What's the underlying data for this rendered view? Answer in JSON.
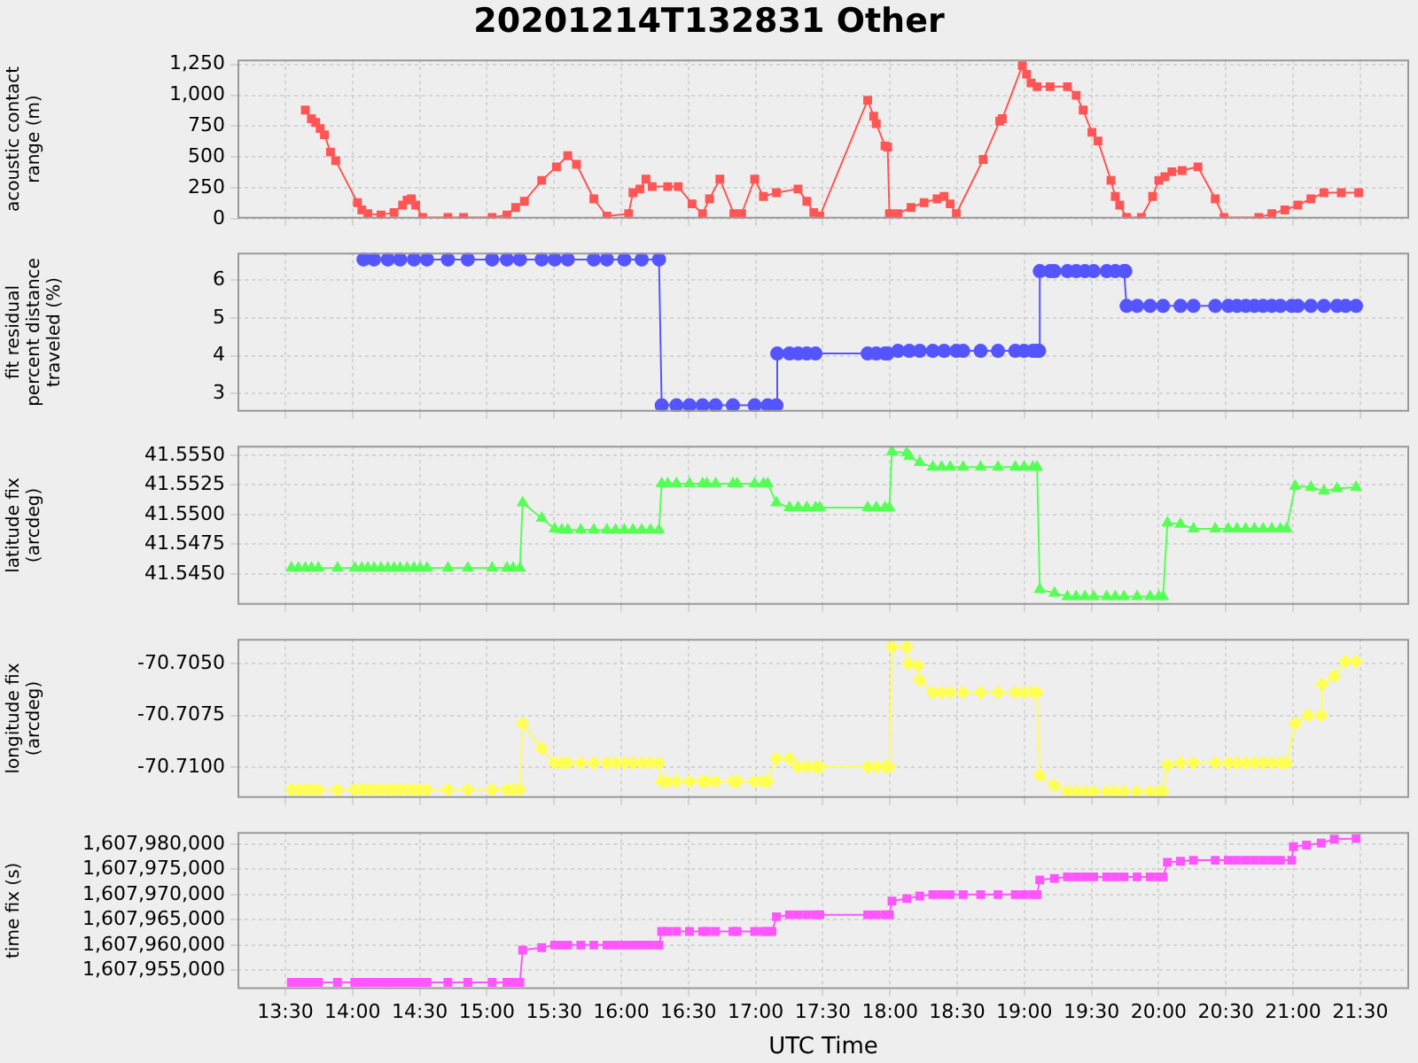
{
  "chart_data": [
    {
      "type": "line",
      "title": "20201214T132831 Other",
      "ylabel": "acoustic contact range (m)",
      "marker": "square",
      "grid": true,
      "tick_labels": "y",
      "xlim": [
        13.144,
        21.864
      ],
      "xticks": [
        {
          "value": 13.5,
          "label": null
        },
        {
          "value": 14,
          "label": null
        },
        {
          "value": 14.5,
          "label": null
        },
        {
          "value": 15,
          "label": null
        },
        {
          "value": 15.5,
          "label": null
        },
        {
          "value": 16,
          "label": null
        },
        {
          "value": 16.5,
          "label": null
        },
        {
          "value": 17,
          "label": null
        },
        {
          "value": 17.5,
          "label": null
        },
        {
          "value": 18,
          "label": null
        },
        {
          "value": 18.5,
          "label": null
        },
        {
          "value": 19,
          "label": null
        },
        {
          "value": 19.5,
          "label": null
        },
        {
          "value": 20,
          "label": null
        },
        {
          "value": 20.5,
          "label": null
        },
        {
          "value": 21,
          "label": null
        },
        {
          "value": 21.5,
          "label": null
        }
      ],
      "ylim": [
        0,
        1290
      ],
      "yticks": [
        0,
        250,
        500,
        750,
        {
          "value": 1000,
          "label": "1,000"
        },
        {
          "value": 1250,
          "label": "1,250"
        }
      ],
      "x": [
        13.649,
        13.694,
        13.726,
        13.759,
        13.791,
        13.836,
        13.875,
        14.037,
        14.069,
        14.114,
        14.212,
        14.309,
        14.373,
        14.406,
        14.438,
        14.47,
        14.522,
        14.71,
        14.826,
        15.039,
        15.149,
        15.214,
        15.279,
        15.408,
        15.518,
        15.602,
        15.667,
        15.796,
        15.893,
        16.055,
        16.087,
        16.139,
        16.184,
        16.23,
        16.346,
        16.424,
        16.527,
        16.605,
        16.657,
        16.734,
        16.838,
        16.896,
        16.993,
        17.058,
        17.155,
        17.316,
        17.381,
        17.433,
        17.478,
        17.834,
        17.879,
        17.898,
        17.963,
        17.983,
        17.996,
        18.06,
        18.157,
        18.254,
        18.351,
        18.403,
        18.448,
        18.494,
        18.694,
        18.817,
        18.836,
        18.985,
        19.017,
        19.05,
        19.095,
        19.192,
        19.321,
        19.386,
        19.438,
        19.503,
        19.548,
        19.645,
        19.677,
        19.71,
        19.761,
        19.871,
        19.955,
        20.001,
        20.046,
        20.098,
        20.175,
        20.292,
        20.421,
        20.486,
        20.745,
        20.842,
        20.939,
        21.036,
        21.133,
        21.23,
        21.359,
        21.488
      ],
      "series": [
        {
          "color": "#ff5555",
          "values": [
            880,
            810,
            780,
            730,
            680,
            540,
            470,
            130,
            70,
            40,
            30,
            50,
            110,
            150,
            160,
            110,
            10,
            10,
            10,
            10,
            30,
            90,
            140,
            310,
            420,
            510,
            440,
            160,
            20,
            40,
            210,
            240,
            320,
            260,
            260,
            260,
            120,
            40,
            160,
            320,
            40,
            40,
            320,
            180,
            210,
            240,
            140,
            50,
            20,
            960,
            830,
            770,
            590,
            580,
            40,
            40,
            90,
            130,
            160,
            180,
            120,
            40,
            480,
            790,
            810,
            1240,
            1170,
            1100,
            1070,
            1070,
            1070,
            1000,
            880,
            700,
            630,
            310,
            180,
            110,
            10,
            10,
            180,
            310,
            340,
            380,
            390,
            420,
            160,
            10,
            10,
            40,
            70,
            110,
            160,
            210,
            210,
            210
          ]
        }
      ]
    },
    {
      "type": "line",
      "ylabel": "fit residual percent distance traveled (%)",
      "marker": "circle",
      "grid": true,
      "tick_labels": "y",
      "xlim": [
        13.144,
        21.864
      ],
      "xticks": [
        {
          "value": 13.5,
          "label": null
        },
        {
          "value": 14,
          "label": null
        },
        {
          "value": 14.5,
          "label": null
        },
        {
          "value": 15,
          "label": null
        },
        {
          "value": 15.5,
          "label": null
        },
        {
          "value": 16,
          "label": null
        },
        {
          "value": 16.5,
          "label": null
        },
        {
          "value": 17,
          "label": null
        },
        {
          "value": 17.5,
          "label": null
        },
        {
          "value": 18,
          "label": null
        },
        {
          "value": 18.5,
          "label": null
        },
        {
          "value": 19,
          "label": null
        },
        {
          "value": 19.5,
          "label": null
        },
        {
          "value": 20,
          "label": null
        },
        {
          "value": 20.5,
          "label": null
        },
        {
          "value": 21,
          "label": null
        },
        {
          "value": 21.5,
          "label": null
        }
      ],
      "ylim": [
        2.52,
        6.73
      ],
      "yticks": [
        3,
        4,
        5,
        6
      ],
      "x": [
        14.082,
        14.16,
        14.263,
        14.354,
        14.457,
        14.554,
        14.71,
        14.858,
        15.039,
        15.149,
        15.246,
        15.408,
        15.505,
        15.602,
        15.796,
        15.893,
        16.023,
        16.152,
        16.281,
        16.301,
        16.411,
        16.508,
        16.605,
        16.702,
        16.831,
        16.993,
        17.09,
        17.155,
        17.161,
        17.252,
        17.316,
        17.381,
        17.446,
        17.834,
        17.898,
        17.963,
        17.983,
        18.06,
        18.144,
        18.222,
        18.319,
        18.403,
        18.494,
        18.545,
        18.675,
        18.804,
        18.933,
        18.998,
        19.063,
        19.095,
        19.11,
        19.115,
        19.192,
        19.224,
        19.321,
        19.386,
        19.451,
        19.516,
        19.613,
        19.677,
        19.742,
        19.752,
        19.761,
        19.839,
        19.936,
        20.033,
        20.162,
        20.259,
        20.421,
        20.518,
        20.583,
        20.648,
        20.712,
        20.777,
        20.842,
        20.906,
        20.99,
        21.036,
        21.133,
        21.23,
        21.327,
        21.391,
        21.469
      ],
      "series": [
        {
          "color": "#5555ff",
          "values": [
            6.55,
            6.55,
            6.55,
            6.55,
            6.55,
            6.55,
            6.55,
            6.55,
            6.55,
            6.55,
            6.55,
            6.55,
            6.55,
            6.55,
            6.55,
            6.55,
            6.55,
            6.55,
            6.55,
            2.69,
            2.69,
            2.69,
            2.69,
            2.69,
            2.69,
            2.69,
            2.69,
            2.69,
            4.06,
            4.06,
            4.06,
            4.06,
            4.06,
            4.06,
            4.06,
            4.06,
            4.06,
            4.13,
            4.13,
            4.13,
            4.13,
            4.13,
            4.13,
            4.13,
            4.13,
            4.13,
            4.13,
            4.13,
            4.13,
            4.13,
            4.13,
            6.24,
            6.24,
            6.24,
            6.24,
            6.24,
            6.24,
            6.24,
            6.24,
            6.24,
            6.24,
            6.24,
            5.32,
            5.32,
            5.32,
            5.32,
            5.32,
            5.32,
            5.32,
            5.32,
            5.32,
            5.32,
            5.32,
            5.32,
            5.32,
            5.32,
            5.32,
            5.32,
            5.32,
            5.32,
            5.32,
            5.32,
            5.32
          ]
        }
      ]
    },
    {
      "type": "line",
      "ylabel": "latitude fix (arcdeg)",
      "marker": "triangle",
      "grid": true,
      "tick_labels": "y",
      "xlim": [
        13.144,
        21.864
      ],
      "xticks": [
        {
          "value": 13.5,
          "label": null
        },
        {
          "value": 14,
          "label": null
        },
        {
          "value": 14.5,
          "label": null
        },
        {
          "value": 15,
          "label": null
        },
        {
          "value": 15.5,
          "label": null
        },
        {
          "value": 16,
          "label": null
        },
        {
          "value": 16.5,
          "label": null
        },
        {
          "value": 17,
          "label": null
        },
        {
          "value": 17.5,
          "label": null
        },
        {
          "value": 18,
          "label": null
        },
        {
          "value": 18.5,
          "label": null
        },
        {
          "value": 19,
          "label": null
        },
        {
          "value": 19.5,
          "label": null
        },
        {
          "value": 20,
          "label": null
        },
        {
          "value": 20.5,
          "label": null
        },
        {
          "value": 21,
          "label": null
        },
        {
          "value": 21.5,
          "label": null
        }
      ],
      "ylim": [
        41.5424,
        41.5558
      ],
      "yticks": [
        {
          "value": 41.545,
          "label": "41.5450"
        },
        {
          "value": 41.5475,
          "label": "41.5475"
        },
        {
          "value": 41.55,
          "label": "41.5500"
        },
        {
          "value": 41.5525,
          "label": "41.5525"
        },
        {
          "value": 41.555,
          "label": "41.5550"
        }
      ],
      "x": [
        13.545,
        13.597,
        13.649,
        13.694,
        13.746,
        13.888,
        14.017,
        14.069,
        14.114,
        14.16,
        14.212,
        14.263,
        14.309,
        14.354,
        14.406,
        14.457,
        14.503,
        14.554,
        14.71,
        14.858,
        15.039,
        15.149,
        15.195,
        15.246,
        15.266,
        15.408,
        15.505,
        15.557,
        15.602,
        15.699,
        15.796,
        15.893,
        15.958,
        16.023,
        16.087,
        16.152,
        16.217,
        16.281,
        16.301,
        16.346,
        16.411,
        16.508,
        16.605,
        16.637,
        16.702,
        16.831,
        16.863,
        16.993,
        17.058,
        17.09,
        17.155,
        17.252,
        17.316,
        17.381,
        17.446,
        17.478,
        17.834,
        17.898,
        17.963,
        17.996,
        18.015,
        18.125,
        18.144,
        18.222,
        18.319,
        18.384,
        18.448,
        18.545,
        18.675,
        18.804,
        18.933,
        18.998,
        19.063,
        19.095,
        19.115,
        19.224,
        19.321,
        19.386,
        19.451,
        19.516,
        19.613,
        19.677,
        19.742,
        19.839,
        19.936,
        20.001,
        20.033,
        20.065,
        20.162,
        20.259,
        20.421,
        20.518,
        20.583,
        20.648,
        20.712,
        20.777,
        20.842,
        20.906,
        20.952,
        21.016,
        21.133,
        21.23,
        21.327,
        21.469
      ],
      "series": [
        {
          "color": "#55ff55",
          "values": [
            41.5455,
            41.5455,
            41.5455,
            41.5455,
            41.5455,
            41.5455,
            41.5455,
            41.5455,
            41.5455,
            41.5455,
            41.5455,
            41.5455,
            41.5455,
            41.5455,
            41.5455,
            41.5455,
            41.5455,
            41.5455,
            41.5455,
            41.5455,
            41.5455,
            41.5455,
            41.5455,
            41.5455,
            41.551,
            41.5497,
            41.5488,
            41.5487,
            41.5487,
            41.5487,
            41.5487,
            41.5487,
            41.5487,
            41.5487,
            41.5487,
            41.5487,
            41.5487,
            41.5487,
            41.5526,
            41.5526,
            41.5526,
            41.5526,
            41.5526,
            41.5526,
            41.5526,
            41.5526,
            41.5526,
            41.5526,
            41.5526,
            41.5526,
            41.551,
            41.5506,
            41.5506,
            41.5506,
            41.5506,
            41.5506,
            41.5506,
            41.5506,
            41.5506,
            41.5506,
            41.5553,
            41.5552,
            41.5549,
            41.5544,
            41.554,
            41.554,
            41.554,
            41.554,
            41.554,
            41.554,
            41.554,
            41.554,
            41.554,
            41.554,
            41.5437,
            41.5434,
            41.5431,
            41.5431,
            41.5431,
            41.5431,
            41.5431,
            41.5431,
            41.5431,
            41.5431,
            41.5431,
            41.5431,
            41.5431,
            41.5493,
            41.5492,
            41.5488,
            41.5488,
            41.5488,
            41.5488,
            41.5488,
            41.5488,
            41.5488,
            41.5488,
            41.5488,
            41.5488,
            41.5524,
            41.5523,
            41.552,
            41.5522,
            41.5523
          ]
        }
      ]
    },
    {
      "type": "line",
      "ylabel": "longitude fix (arcdeg)",
      "marker": "diamond",
      "grid": true,
      "tick_labels": "y",
      "xlim": [
        13.144,
        21.864
      ],
      "xticks": [
        {
          "value": 13.5,
          "label": null
        },
        {
          "value": 14,
          "label": null
        },
        {
          "value": 14.5,
          "label": null
        },
        {
          "value": 15,
          "label": null
        },
        {
          "value": 15.5,
          "label": null
        },
        {
          "value": 16,
          "label": null
        },
        {
          "value": 16.5,
          "label": null
        },
        {
          "value": 17,
          "label": null
        },
        {
          "value": 17.5,
          "label": null
        },
        {
          "value": 18,
          "label": null
        },
        {
          "value": 18.5,
          "label": null
        },
        {
          "value": 19,
          "label": null
        },
        {
          "value": 19.5,
          "label": null
        },
        {
          "value": 20,
          "label": null
        },
        {
          "value": 20.5,
          "label": null
        },
        {
          "value": 21,
          "label": null
        },
        {
          "value": 21.5,
          "label": null
        }
      ],
      "ylim": [
        -70.7115,
        -70.7038
      ],
      "yticks": [
        {
          "value": -70.71,
          "label": "-70.7100"
        },
        {
          "value": -70.7075,
          "label": "-70.7075"
        },
        {
          "value": -70.705,
          "label": "-70.7050"
        }
      ],
      "x": [
        13.545,
        13.597,
        13.649,
        13.694,
        13.746,
        13.888,
        14.017,
        14.069,
        14.114,
        14.16,
        14.212,
        14.263,
        14.309,
        14.354,
        14.406,
        14.457,
        14.503,
        14.554,
        14.71,
        14.858,
        15.039,
        15.149,
        15.195,
        15.246,
        15.266,
        15.408,
        15.505,
        15.557,
        15.602,
        15.699,
        15.796,
        15.893,
        15.958,
        16.023,
        16.087,
        16.152,
        16.217,
        16.281,
        16.301,
        16.346,
        16.411,
        16.508,
        16.605,
        16.637,
        16.702,
        16.831,
        16.863,
        16.993,
        17.058,
        17.09,
        17.155,
        17.252,
        17.316,
        17.381,
        17.446,
        17.478,
        17.834,
        17.898,
        17.963,
        17.996,
        18.015,
        18.125,
        18.138,
        18.209,
        18.222,
        18.319,
        18.384,
        18.448,
        18.545,
        18.675,
        18.804,
        18.933,
        18.998,
        19.063,
        19.095,
        19.115,
        19.224,
        19.321,
        19.386,
        19.451,
        19.516,
        19.613,
        19.677,
        19.742,
        19.839,
        19.936,
        20.001,
        20.033,
        20.065,
        20.162,
        20.259,
        20.421,
        20.518,
        20.583,
        20.648,
        20.712,
        20.777,
        20.842,
        20.906,
        20.952,
        21.016,
        21.113,
        21.21,
        21.216,
        21.307,
        21.391,
        21.469
      ],
      "series": [
        {
          "color": "#ffff55",
          "values": [
            -70.7111,
            -70.7111,
            -70.7111,
            -70.7111,
            -70.7111,
            -70.7111,
            -70.7111,
            -70.7111,
            -70.7111,
            -70.7111,
            -70.7111,
            -70.7111,
            -70.7111,
            -70.7111,
            -70.7111,
            -70.7111,
            -70.7111,
            -70.7111,
            -70.7111,
            -70.7111,
            -70.7111,
            -70.7111,
            -70.7111,
            -70.7111,
            -70.7079,
            -70.7091,
            -70.7098,
            -70.7098,
            -70.7098,
            -70.7098,
            -70.7098,
            -70.7098,
            -70.7098,
            -70.7098,
            -70.7098,
            -70.7098,
            -70.7098,
            -70.7098,
            -70.7107,
            -70.7107,
            -70.7107,
            -70.7107,
            -70.7107,
            -70.7107,
            -70.7107,
            -70.7107,
            -70.7107,
            -70.7107,
            -70.7107,
            -70.7107,
            -70.7096,
            -70.7096,
            -70.71,
            -70.71,
            -70.71,
            -70.71,
            -70.71,
            -70.71,
            -70.71,
            -70.71,
            -70.7042,
            -70.7042,
            -70.705,
            -70.7051,
            -70.7058,
            -70.7064,
            -70.7064,
            -70.7064,
            -70.7064,
            -70.7064,
            -70.7064,
            -70.7064,
            -70.7064,
            -70.7064,
            -70.7064,
            -70.7104,
            -70.7109,
            -70.7112,
            -70.7112,
            -70.7112,
            -70.7112,
            -70.7112,
            -70.7112,
            -70.7112,
            -70.7112,
            -70.7112,
            -70.7112,
            -70.7112,
            -70.7099,
            -70.7098,
            -70.7098,
            -70.7098,
            -70.7098,
            -70.7098,
            -70.7098,
            -70.7098,
            -70.7098,
            -70.7098,
            -70.7098,
            -70.7098,
            -70.7079,
            -70.7075,
            -70.7075,
            -70.706,
            -70.7056,
            -70.7049,
            -70.7049
          ]
        }
      ]
    },
    {
      "type": "line",
      "ylabel": "time fix (s)",
      "xlabel": "UTC Time",
      "marker": "square",
      "grid": true,
      "xlim": [
        13.144,
        21.864
      ],
      "xticks": [
        {
          "value": 13.5,
          "label": "13:30"
        },
        {
          "value": 14,
          "label": "14:00"
        },
        {
          "value": 14.5,
          "label": "14:30"
        },
        {
          "value": 15,
          "label": "15:00"
        },
        {
          "value": 15.5,
          "label": "15:30"
        },
        {
          "value": 16,
          "label": "16:00"
        },
        {
          "value": 16.5,
          "label": "16:30"
        },
        {
          "value": 17,
          "label": "17:00"
        },
        {
          "value": 17.5,
          "label": "17:30"
        },
        {
          "value": 18,
          "label": "18:00"
        },
        {
          "value": 18.5,
          "label": "18:30"
        },
        {
          "value": 19,
          "label": "19:00"
        },
        {
          "value": 19.5,
          "label": "19:30"
        },
        {
          "value": 20,
          "label": "20:00"
        },
        {
          "value": 20.5,
          "label": "20:30"
        },
        {
          "value": 21,
          "label": "21:00"
        },
        {
          "value": 21.5,
          "label": "21:30"
        }
      ],
      "ylim": [
        1607951300,
        1607982400
      ],
      "yticks": [
        {
          "value": 1607955000,
          "label": "1,607,955,000"
        },
        {
          "value": 1607960000,
          "label": "1,607,960,000"
        },
        {
          "value": 1607965000,
          "label": "1,607,965,000"
        },
        {
          "value": 1607970000,
          "label": "1,607,970,000"
        },
        {
          "value": 1607975000,
          "label": "1,607,975,000"
        },
        {
          "value": 1607980000,
          "label": "1,607,980,000"
        }
      ],
      "x": [
        13.545,
        13.597,
        13.649,
        13.694,
        13.746,
        13.888,
        14.017,
        14.069,
        14.114,
        14.16,
        14.212,
        14.263,
        14.309,
        14.354,
        14.406,
        14.457,
        14.503,
        14.554,
        14.71,
        14.858,
        15.039,
        15.149,
        15.195,
        15.246,
        15.266,
        15.408,
        15.505,
        15.557,
        15.602,
        15.699,
        15.796,
        15.893,
        15.958,
        16.023,
        16.087,
        16.152,
        16.217,
        16.281,
        16.301,
        16.346,
        16.411,
        16.508,
        16.605,
        16.637,
        16.702,
        16.831,
        16.863,
        16.993,
        17.058,
        17.09,
        17.122,
        17.155,
        17.252,
        17.316,
        17.381,
        17.446,
        17.478,
        17.834,
        17.898,
        17.963,
        17.996,
        18.015,
        18.125,
        18.222,
        18.319,
        18.384,
        18.448,
        18.545,
        18.675,
        18.804,
        18.933,
        18.998,
        19.063,
        19.095,
        19.115,
        19.224,
        19.321,
        19.386,
        19.451,
        19.516,
        19.613,
        19.677,
        19.742,
        19.839,
        19.936,
        20.001,
        20.033,
        20.065,
        20.162,
        20.259,
        20.421,
        20.518,
        20.583,
        20.648,
        20.712,
        20.777,
        20.842,
        20.906,
        20.99,
        21.003,
        21.1,
        21.21,
        21.307,
        21.469
      ],
      "series": [
        {
          "color": "#ff55ff",
          "values": [
            1607952600,
            1607952600,
            1607952600,
            1607952600,
            1607952600,
            1607952600,
            1607952600,
            1607952600,
            1607952600,
            1607952600,
            1607952600,
            1607952600,
            1607952600,
            1607952600,
            1607952600,
            1607952600,
            1607952600,
            1607952600,
            1607952600,
            1607952600,
            1607952600,
            1607952600,
            1607952600,
            1607952600,
            1607959000,
            1607959500,
            1607960000,
            1607960000,
            1607960000,
            1607960000,
            1607960000,
            1607960000,
            1607960000,
            1607960000,
            1607960000,
            1607960000,
            1607960000,
            1607960000,
            1607962700,
            1607962700,
            1607962700,
            1607962700,
            1607962700,
            1607962700,
            1607962700,
            1607962700,
            1607962700,
            1607962700,
            1607962700,
            1607962700,
            1607962700,
            1607965600,
            1607966000,
            1607966000,
            1607966000,
            1607966000,
            1607966000,
            1607966000,
            1607966000,
            1607966000,
            1607966000,
            1607968700,
            1607969200,
            1607969700,
            1607970000,
            1607970000,
            1607970000,
            1607970000,
            1607970000,
            1607970000,
            1607970000,
            1607970000,
            1607970000,
            1607970000,
            1607972900,
            1607973200,
            1607973500,
            1607973500,
            1607973500,
            1607973500,
            1607973500,
            1607973500,
            1607973500,
            1607973500,
            1607973500,
            1607973500,
            1607973500,
            1607976400,
            1607976600,
            1607976800,
            1607976800,
            1607976800,
            1607976800,
            1607976800,
            1607976800,
            1607976800,
            1607976800,
            1607976800,
            1607976800,
            1607979500,
            1607979800,
            1607980200,
            1607981000,
            1607981100
          ]
        }
      ]
    }
  ]
}
